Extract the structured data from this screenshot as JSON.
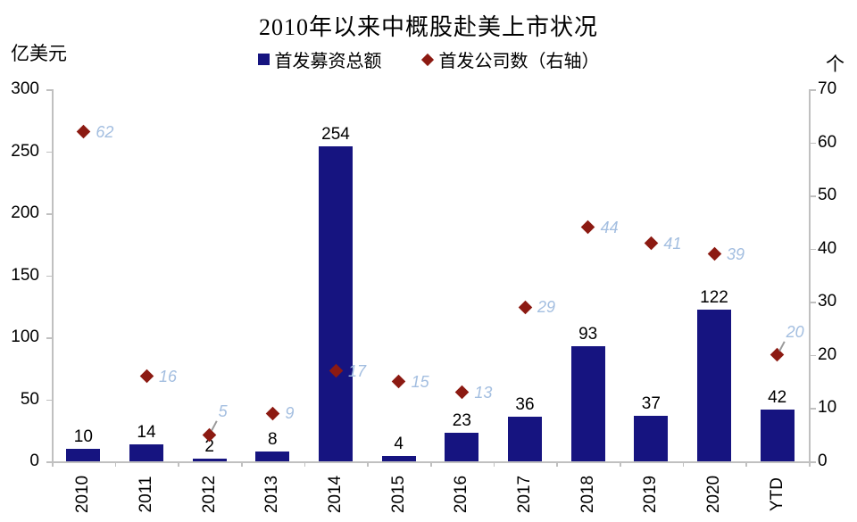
{
  "title": "2010年以来中概股赴美上市状况",
  "left_axis_unit": "亿美元",
  "right_axis_unit": "个",
  "legend": {
    "bar_label": "首发募资总额",
    "diamond_label": "首发公司数（右轴）"
  },
  "colors": {
    "bar": "#161480",
    "diamond": "#8C1A12",
    "diamond_value_label": "#A3BEE0",
    "bar_value_label": "#000000",
    "axis_line": "#C0C0C0",
    "title_text": "#000000"
  },
  "chart_data": {
    "type": "bar",
    "subtype": "bar+scatter-combo-dual-axis",
    "title": "2010年以来中概股赴美上市状况",
    "categories": [
      "2010",
      "2011",
      "2012",
      "2013",
      "2014",
      "2015",
      "2016",
      "2017",
      "2018",
      "2019",
      "2020",
      "YTD"
    ],
    "series": [
      {
        "name": "首发募资总额",
        "type": "bar",
        "axis": "left",
        "values": [
          10,
          14,
          2,
          8,
          254,
          4,
          23,
          36,
          93,
          37,
          122,
          42
        ]
      },
      {
        "name": "首发公司数（右轴）",
        "type": "scatter",
        "marker": "diamond",
        "axis": "right",
        "values": [
          62,
          16,
          5,
          9,
          17,
          15,
          13,
          29,
          44,
          41,
          39,
          20
        ],
        "callout_label_categories": [
          "2012",
          "YTD"
        ]
      }
    ],
    "left_axis": {
      "label": "亿美元",
      "min": 0,
      "max": 300,
      "ticks": [
        300,
        250,
        200,
        150,
        100,
        50,
        0
      ]
    },
    "right_axis": {
      "label": "个",
      "min": 0,
      "max": 70,
      "ticks": [
        70,
        60,
        50,
        40,
        30,
        20,
        10,
        0
      ]
    },
    "grid": false,
    "legend_position": "top-center",
    "x_tick_label_rotation": 90
  }
}
